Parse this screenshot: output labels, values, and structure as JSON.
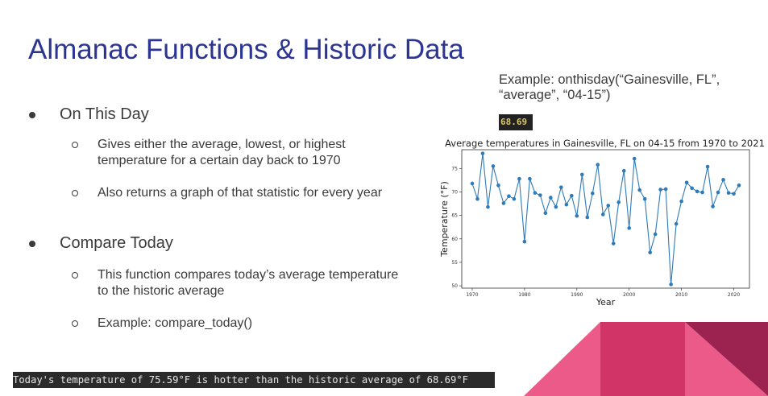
{
  "slide": {
    "title": "Almanac Functions & Historic Data"
  },
  "bullets": [
    {
      "label": "On This Day",
      "sub": [
        [
          "Gives either the average, lowest, or highest",
          "temperature for a certain day back to 1970"
        ],
        [
          "Also returns a graph of that statistic for every year"
        ]
      ]
    },
    {
      "label": "Compare Today",
      "sub": [
        [
          "This function compares today’s average temperature",
          "to the historic average"
        ],
        [
          "Example: compare_today()"
        ]
      ]
    }
  ],
  "example": {
    "line1": "Example: onthisday(“Gainesville, FL”,",
    "line2": "“average”, “04-15”)",
    "result": "68.69"
  },
  "terminal_output": "Today's temperature of 75.59°F is hotter than the historic average of 68.69°F",
  "colors": {
    "title": "#2c3592",
    "line": "#2f7ab8",
    "deco_pink": "#ec5a8a",
    "deco_magenta": "#d13466",
    "deco_maroon": "#9c2350"
  },
  "chart_data": {
    "type": "line",
    "title": "Average temperatures in Gainesville, FL on 04-15 from 1970 to 2021",
    "xlabel": "Year",
    "ylabel": "Temperature (°F)",
    "xlim": [
      1968,
      2023
    ],
    "ylim": [
      49.5,
      79
    ],
    "xticks": [
      1970,
      1980,
      1990,
      2000,
      2010,
      2020
    ],
    "yticks": [
      50,
      55,
      60,
      65,
      70,
      75
    ],
    "grid": false,
    "x": [
      1970,
      1971,
      1972,
      1973,
      1974,
      1975,
      1976,
      1977,
      1978,
      1979,
      1980,
      1981,
      1982,
      1983,
      1984,
      1985,
      1986,
      1987,
      1988,
      1989,
      1990,
      1991,
      1992,
      1993,
      1994,
      1995,
      1996,
      1997,
      1998,
      1999,
      2000,
      2001,
      2002,
      2003,
      2004,
      2005,
      2006,
      2007,
      2008,
      2009,
      2010,
      2011,
      2012,
      2013,
      2014,
      2015,
      2016,
      2017,
      2018,
      2019,
      2020,
      2021
    ],
    "y": [
      71.8,
      68.5,
      78.2,
      66.8,
      75.5,
      71.4,
      67.6,
      69.1,
      68.5,
      72.8,
      59.4,
      72.8,
      69.8,
      69.3,
      65.5,
      68.8,
      66.8,
      71.0,
      67.3,
      69.2,
      64.9,
      73.7,
      64.6,
      69.7,
      75.8,
      65.2,
      67.1,
      59.0,
      67.8,
      74.5,
      62.3,
      77.1,
      70.4,
      68.5,
      57.1,
      61.0,
      70.5,
      70.6,
      50.3,
      63.2,
      68.0,
      72.0,
      70.8,
      70.1,
      69.9,
      75.4,
      66.9,
      69.9,
      72.6,
      69.8,
      69.6,
      71.4
    ]
  }
}
